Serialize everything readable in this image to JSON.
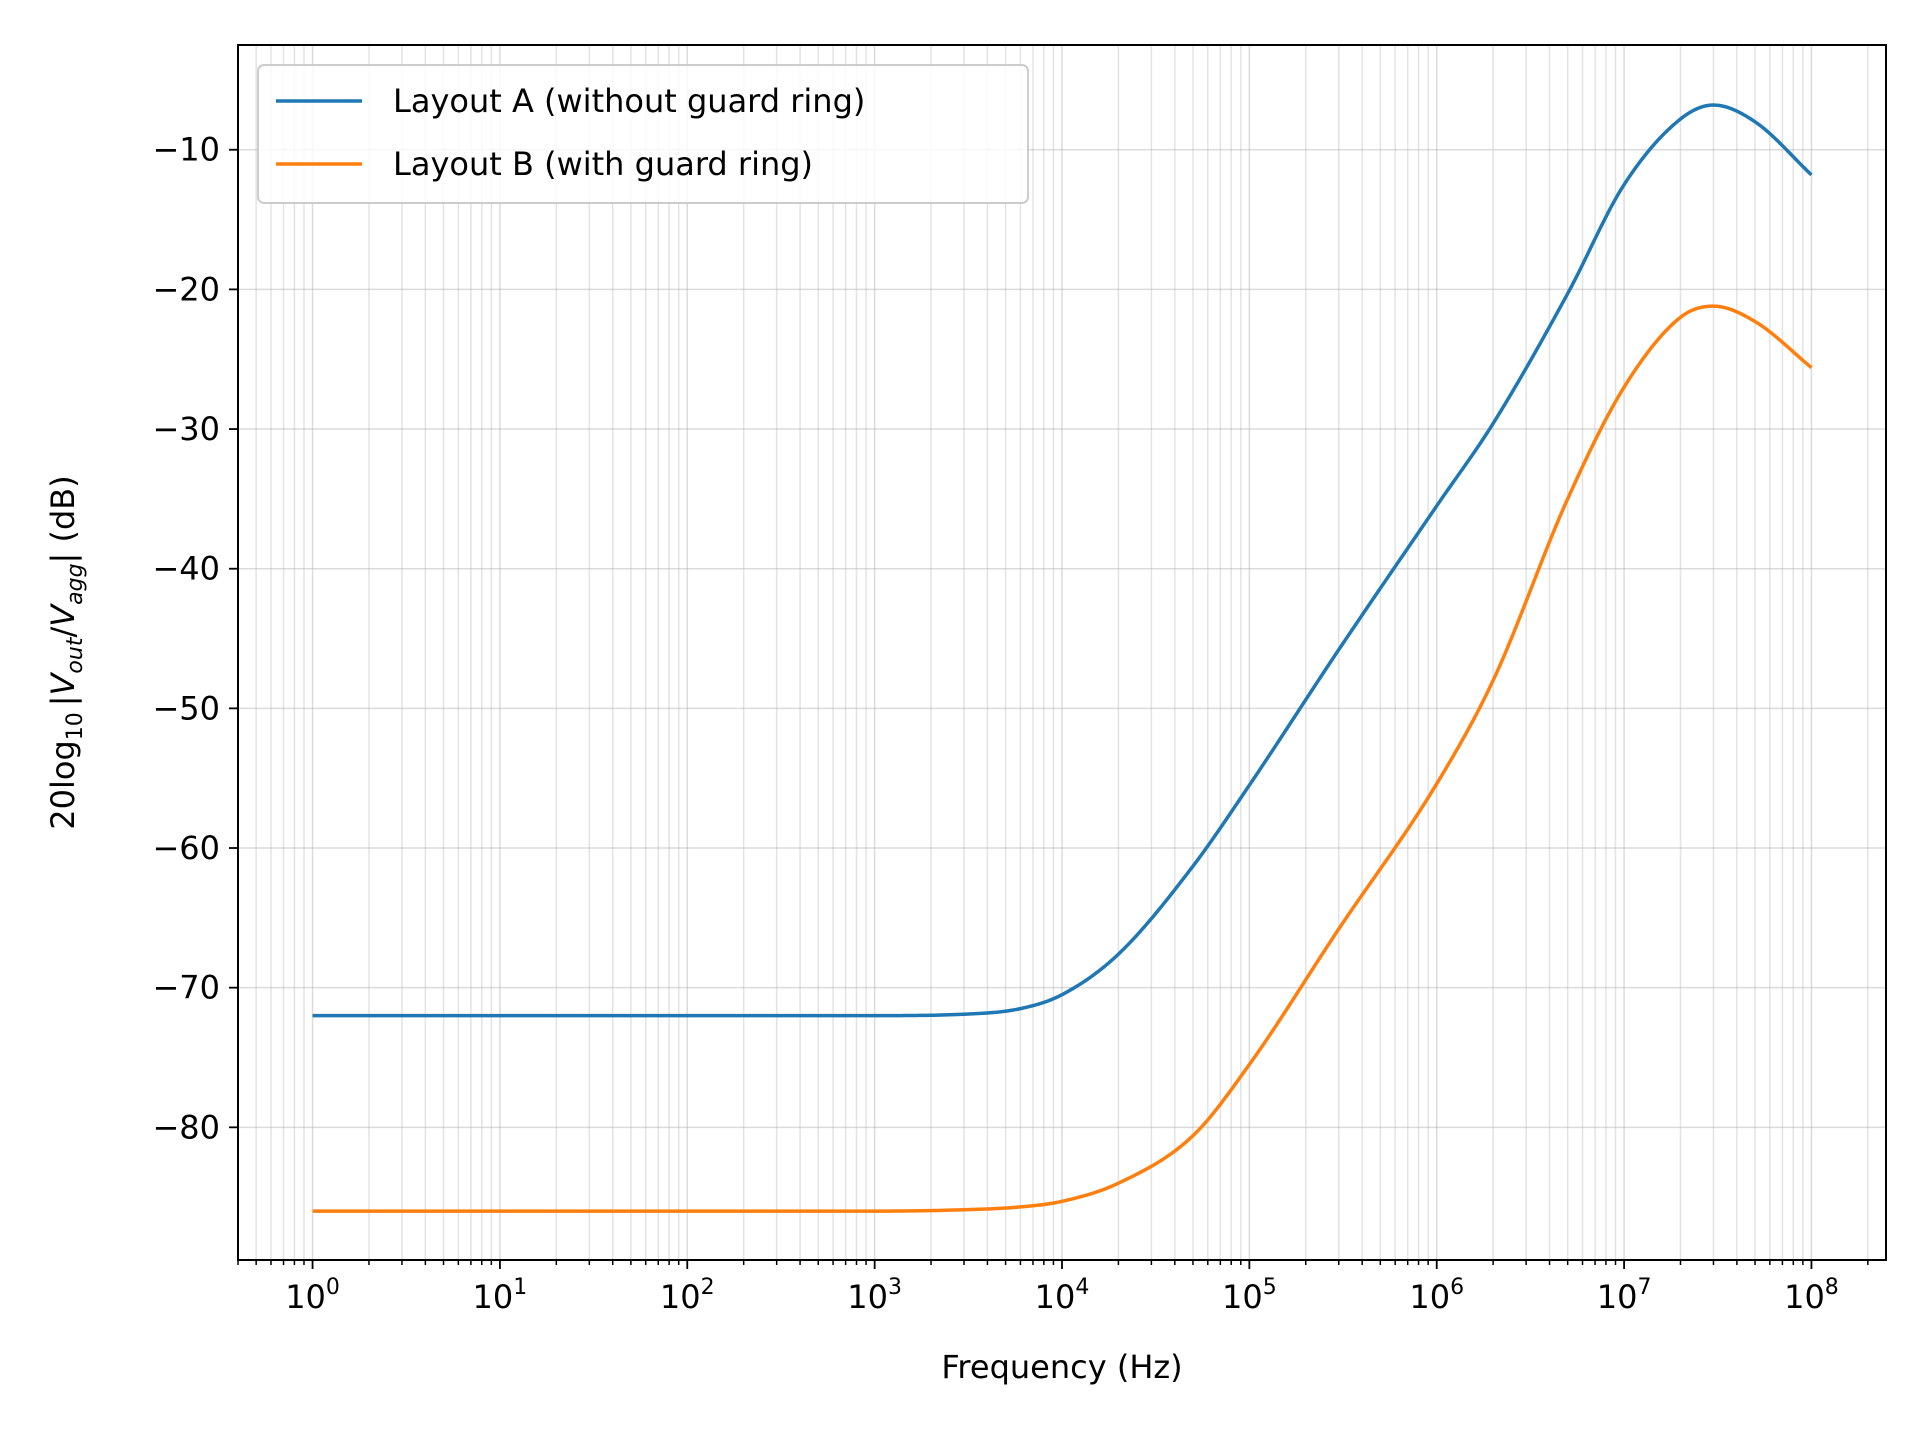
{
  "chart_data": {
    "type": "line",
    "title": "",
    "xlabel": "Frequency (Hz)",
    "ylabel": {
      "prefix": "20log",
      "prefix_sub": "10",
      "v1": "V",
      "v1_sub": "out",
      "slash": "/",
      "v2": "V",
      "v2_sub": "agg",
      "suffix": " (dB)"
    },
    "x_scale": "log",
    "xlim": [
      0.4,
      250000000
    ],
    "ylim": [
      -89.5,
      -2.5
    ],
    "x_ticks": [
      {
        "value": 1,
        "exp": "0"
      },
      {
        "value": 10,
        "exp": "1"
      },
      {
        "value": 100,
        "exp": "2"
      },
      {
        "value": 1000,
        "exp": "3"
      },
      {
        "value": 10000,
        "exp": "4"
      },
      {
        "value": 100000,
        "exp": "5"
      },
      {
        "value": 1000000,
        "exp": "6"
      },
      {
        "value": 10000000,
        "exp": "7"
      },
      {
        "value": 100000000,
        "exp": "8"
      }
    ],
    "x_tick_base": "10",
    "y_ticks": [
      {
        "value": -10,
        "label": "−10"
      },
      {
        "value": -20,
        "label": "−20"
      },
      {
        "value": -30,
        "label": "−30"
      },
      {
        "value": -40,
        "label": "−40"
      },
      {
        "value": -50,
        "label": "−50"
      },
      {
        "value": -60,
        "label": "−60"
      },
      {
        "value": -70,
        "label": "−70"
      },
      {
        "value": -80,
        "label": "−80"
      }
    ],
    "grid": true,
    "legend_position": "top-left",
    "series": [
      {
        "name": "Layout A (without guard ring)",
        "color": "#1f77b4",
        "x": [
          1,
          10,
          100,
          1000,
          3000,
          6000,
          10000,
          20000,
          50000,
          100000,
          300000,
          1000000,
          2000000,
          5000000,
          10000000,
          20000000,
          30000000,
          50000000,
          100000000
        ],
        "y": [
          -72.0,
          -72.0,
          -72.0,
          -72.0,
          -71.9,
          -71.5,
          -70.5,
          -67.6,
          -61.3,
          -55.5,
          -45.8,
          -35.5,
          -29.6,
          -20.3,
          -12.5,
          -7.8,
          -6.8,
          -8.0,
          -11.8
        ]
      },
      {
        "name": "Layout B (with guard ring)",
        "color": "#ff7f0e",
        "x": [
          1,
          10,
          100,
          1000,
          3000,
          6000,
          10000,
          20000,
          50000,
          100000,
          300000,
          1000000,
          2000000,
          5000000,
          10000000,
          20000000,
          30000000,
          50000000,
          100000000
        ],
        "y": [
          -86.0,
          -86.0,
          -86.0,
          -86.0,
          -85.9,
          -85.7,
          -85.3,
          -84.0,
          -80.6,
          -75.5,
          -65.8,
          -55.4,
          -48.0,
          -35.0,
          -27.0,
          -22.0,
          -21.2,
          -22.3,
          -25.6
        ]
      }
    ]
  }
}
